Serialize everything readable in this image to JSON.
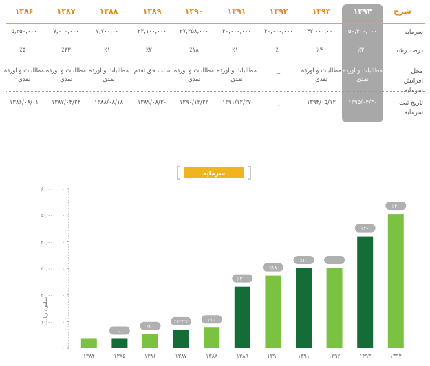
{
  "table": {
    "label_header": "شرح",
    "years": [
      "۱۳۹۴",
      "۱۳۹۳",
      "۱۳۹۲",
      "۱۳۹۱",
      "۱۳۹۰",
      "۱۳۸۹",
      "۱۳۸۸",
      "۱۳۸۷",
      "۱۳۸۶"
    ],
    "rows": [
      {
        "label": "سرمایه",
        "values": [
          "۵۰,۴۰۰,۰۰۰",
          "۴۲,۰۰۰,۰۰۰",
          "۳۰,۰۰۰,۰۰۰",
          "۳۰,۰۰۰,۰۰۰",
          "۲۷,۲۵۸,۰۰۰",
          "۲۳,۱۰۰,۰۰۰",
          "۷,۷۰۰,۰۰۰",
          "۷,۰۰۰,۰۰۰",
          "۵,۲۵۰,۰۰۰"
        ]
      },
      {
        "label": "درصد رشد",
        "values": [
          "٪۲۰",
          "٪۴۰",
          "٪۰",
          "٪۱۰",
          "٪۱۸",
          "٪۲۰۰",
          "٪۱۰",
          "٪۳۳",
          "٪۵۰"
        ]
      },
      {
        "label": "محل افزایش سرمایه",
        "values": [
          "مطالبات و آورده نقدی",
          "مطالبات و آورده نقدی",
          "_",
          "مطالبات و آورده نقدی",
          "مطالبات و آورده نقدی",
          "سلب حق تقدم",
          "مطالبات و آورده نقدی",
          "مطالبات و آورده نقدی",
          "مطالبات و آورده نقدی"
        ]
      },
      {
        "label": "تاریخ ثبت سرمایه",
        "values": [
          "۱۳۹۵/۰۴/۳۰",
          "۱۳۹۴/۰۵/۱۲",
          "_",
          "۱۳۹۱/۱۲/۲۷",
          "۱۳۹۰/۱۲/۲۳",
          "۱۳۸۹/۰۸/۳۰",
          "۱۳۸۸/۰۸/۱۸",
          "۱۳۸۷/۰۴/۲۴",
          "۱۳۸۶/۰۸/۰۱"
        ]
      }
    ]
  },
  "chart_data": {
    "type": "bar",
    "title": "سرمایه",
    "ylabel": "میلیون ریال",
    "ylim": [
      0,
      60000000
    ],
    "yticks": [
      "۰",
      "۱۰,۰۰۰,۰۰۰",
      "۲۰,۰۰۰,۰۰۰",
      "۳۰,۰۰۰,۰۰۰",
      "۴۰,۰۰۰,۰۰۰",
      "۵۰,۰۰۰,۰۰۰",
      "۶۰,۰۰۰,۰۰۰"
    ],
    "categories": [
      "۱۳۸۴",
      "۱۳۸۵",
      "۱۳۸۶",
      "۱۳۸۷",
      "۱۳۸۸",
      "۱۳۸۹",
      "۱۳۹۰",
      "۱۳۹۱",
      "۱۳۹۲",
      "۱۳۹۳",
      "۱۳۹۴"
    ],
    "values": [
      3500000,
      3500000,
      5250000,
      7000000,
      7700000,
      23100000,
      27258000,
      30000000,
      30000000,
      42000000,
      50400000
    ],
    "growth_labels": [
      "",
      "۰",
      "٪۵۰",
      "٪۳۳/۳۳",
      "٪۱۰",
      "٪۲۰۰",
      "٪۱۸",
      "٪۱۰",
      "۰",
      "٪۴۰",
      "٪۲۰"
    ],
    "bar_colors": [
      "#7cc242",
      "#146c37",
      "#7cc242",
      "#146c37",
      "#7cc242",
      "#146c37",
      "#7cc242",
      "#146c37",
      "#7cc242",
      "#146c37",
      "#7cc242"
    ],
    "title_color": "#f0b41e",
    "bracket_color": "#aaaaaa",
    "badge_color": "#b0b0b0",
    "grid": false
  }
}
